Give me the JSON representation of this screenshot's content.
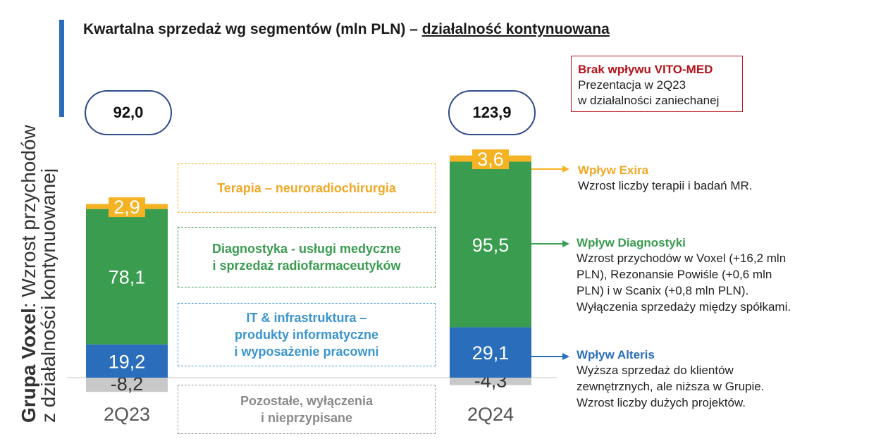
{
  "side_title": {
    "bold": "Grupa Voxel",
    "rest": ": Wzrost przychodów",
    "line2": "z działalności kontynuowanej"
  },
  "title": {
    "main": "Kwartalna sprzedaż wg segmentów (mln PLN) – ",
    "underlined": "działalność kontynuowana"
  },
  "note": {
    "title": "Brak wpływu VITO-MED",
    "line1": "Prezentacja w 2Q23",
    "line2": "w działalności zaniechanej"
  },
  "segments": {
    "terapia": [
      "Terapia – neuroradiochirurgia"
    ],
    "diagnostyka": [
      "Diagnostyka - usługi medyczne",
      "i sprzedaż radiofarmaceutyków"
    ],
    "it": [
      "IT & infrastruktura –",
      "produkty informatyczne",
      "i  wyposażenie pracowni"
    ],
    "pozostale": [
      "Pozostałe, wyłączenia",
      "i nieprzypisane"
    ]
  },
  "annotations": {
    "exira": {
      "title": "Wpływ Exira",
      "text": [
        "Wzrost liczby terapii i badań MR."
      ]
    },
    "diagnostyki": {
      "title": "Wpływ Diagnostyki",
      "text": [
        "Wzrost przychodów w Voxel (+16,2 mln",
        "PLN), Rezonansie Powiśle (+0,6 mln",
        "PLN) i w Scanix (+0,8 mln PLN).",
        "Wyłączenia sprzedaży między spółkami."
      ]
    },
    "alteris": {
      "title": "Wpływ Alteris",
      "text": [
        "Wyższa sprzedaż do klientów",
        "zewnętrznych, ale niższa w Grupie.",
        "Wzrost liczby dużych projektów."
      ]
    }
  },
  "colors": {
    "terapia": "#f5b324",
    "diagnostyka": "#3a9c4f",
    "it": "#2a6ebb",
    "pozostale": "#c8c8c8",
    "pill_border": "#2c4a8c",
    "red": "#b3141b"
  },
  "chart_data": {
    "type": "bar",
    "stacked": true,
    "categories": [
      "2Q23",
      "2Q24"
    ],
    "totals": [
      "92,0",
      "123,9"
    ],
    "series": [
      {
        "key": "pozostale",
        "values": [
          -8.2,
          -4.3
        ],
        "labels": [
          "-8,2",
          "-4,3"
        ]
      },
      {
        "key": "it",
        "values": [
          19.2,
          29.1
        ],
        "labels": [
          "19,2",
          "29,1"
        ]
      },
      {
        "key": "diagnostyka",
        "values": [
          78.1,
          95.5
        ],
        "labels": [
          "78,1",
          "95,5"
        ]
      },
      {
        "key": "terapia",
        "values": [
          2.9,
          3.6
        ],
        "labels": [
          "2,9",
          "3,6"
        ]
      }
    ]
  }
}
